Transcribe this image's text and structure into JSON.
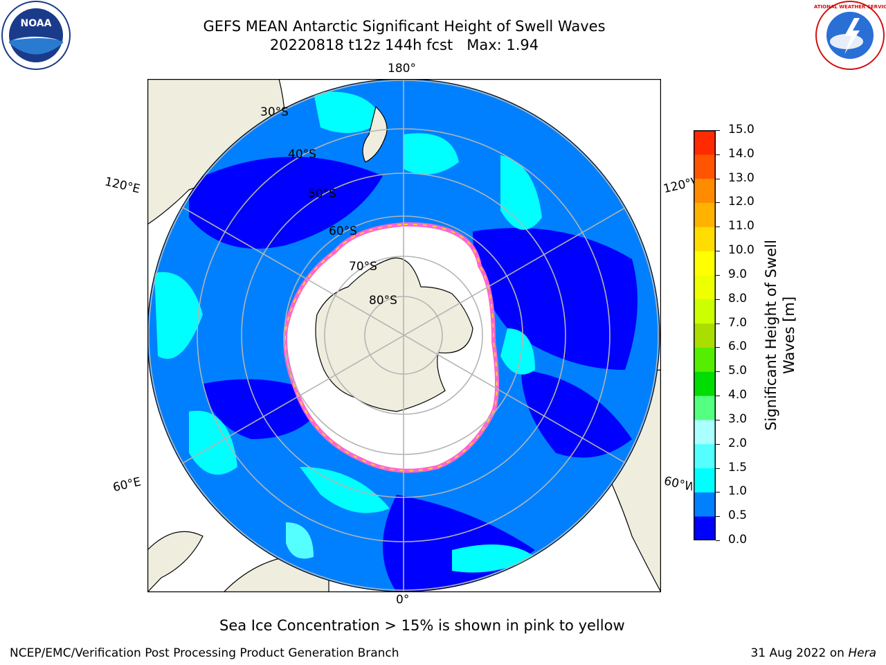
{
  "title": {
    "line1": "GEFS MEAN Antarctic Significant Height of Swell Waves",
    "line2": "20220818 t12z 144h fcst   Max: 1.94"
  },
  "logos": {
    "left": {
      "name": "noaa-logo",
      "text": "NOAA"
    },
    "right": {
      "name": "nws-logo",
      "text": "NATIONAL WEATHER SERVICE"
    }
  },
  "map": {
    "projection": "south-polar-stereographic",
    "longitude_labels": {
      "top": "180°",
      "bottom": "0°",
      "left_upper": "120°E",
      "left_lower": "60°E",
      "right_upper": "120°W",
      "right_lower": "60°W"
    },
    "latitude_labels": [
      "30°S",
      "40°S",
      "50°S",
      "60°S",
      "70°S",
      "80°S"
    ],
    "colors": {
      "land": "#efedde",
      "coast": "#000000",
      "grid": "#b4b4b4",
      "sea_ice": "#ffffff",
      "ice_edge": [
        "#ff66cc",
        "#ffcc33"
      ]
    }
  },
  "colorbar": {
    "label_line1": "Significant Height of Swell",
    "label_line2": "Waves [m]",
    "ticks": [
      "15.0",
      "14.0",
      "13.0",
      "12.0",
      "11.0",
      "10.0",
      "9.0",
      "8.0",
      "7.0",
      "6.0",
      "5.0",
      "4.0",
      "3.0",
      "2.0",
      "1.5",
      "1.0",
      "0.5",
      "0.0"
    ],
    "levels": [
      0.0,
      0.5,
      1.0,
      1.5,
      2.0,
      3.0,
      4.0,
      5.0,
      6.0,
      7.0,
      8.0,
      9.0,
      10.0,
      11.0,
      12.0,
      13.0,
      14.0,
      15.0
    ],
    "colors": [
      "#0000ff",
      "#0080ff",
      "#00ffff",
      "#55ffff",
      "#aaffff",
      "#55ff80",
      "#00dd00",
      "#55ee00",
      "#aadd00",
      "#ccff00",
      "#eeff00",
      "#ffff00",
      "#ffdd00",
      "#ffb300",
      "#ff8c00",
      "#ff5500",
      "#ff2a00"
    ]
  },
  "notes": {
    "sea_ice": "Sea Ice Concentration > 15% is shown in pink to yellow",
    "footer_left": "NCEP/EMC/Verification Post Processing Product Generation Branch",
    "footer_right_prefix": "31 Aug 2022 on",
    "footer_right_host": "Hera"
  }
}
